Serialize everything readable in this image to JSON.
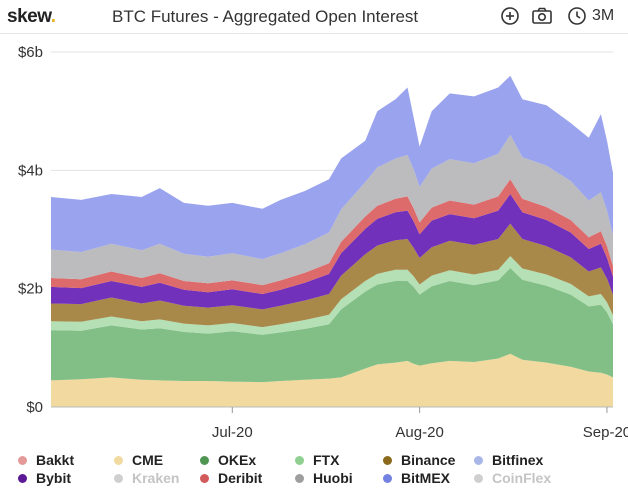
{
  "header": {
    "logo_text": "skew",
    "logo_dot": ".",
    "title": "BTC Futures - Aggregated Open Interest",
    "add_icon": "plus-circle-icon",
    "camera_icon": "camera-icon",
    "clock_icon": "clock-icon",
    "range_label": "3M"
  },
  "chart_data": {
    "type": "area",
    "stacked": true,
    "title": "BTC Futures - Aggregated Open Interest",
    "xlabel": "",
    "ylabel": "",
    "ylim": [
      0,
      6
    ],
    "y_unit": "$bn",
    "y_ticks": [
      "$0",
      "$2b",
      "$4b",
      "$6b"
    ],
    "x_ticks": [
      "Jul-20",
      "Aug-20",
      "Sep-20"
    ],
    "x_tick_days": [
      30,
      61,
      92
    ],
    "x_range_days": [
      0,
      93
    ],
    "grid": "horizontal",
    "legend_position": "bottom",
    "total_open_interest_bn": [
      {
        "day": 0,
        "value": 3.55
      },
      {
        "day": 5,
        "value": 3.5
      },
      {
        "day": 10,
        "value": 3.6
      },
      {
        "day": 15,
        "value": 3.55
      },
      {
        "day": 18,
        "value": 3.7
      },
      {
        "day": 22,
        "value": 3.45
      },
      {
        "day": 26,
        "value": 3.4
      },
      {
        "day": 30,
        "value": 3.45
      },
      {
        "day": 35,
        "value": 3.35
      },
      {
        "day": 38,
        "value": 3.5
      },
      {
        "day": 42,
        "value": 3.65
      },
      {
        "day": 46,
        "value": 3.85
      },
      {
        "day": 48,
        "value": 4.2
      },
      {
        "day": 52,
        "value": 4.5
      },
      {
        "day": 54,
        "value": 5.0
      },
      {
        "day": 57,
        "value": 5.2
      },
      {
        "day": 59,
        "value": 5.4
      },
      {
        "day": 60,
        "value": 4.9
      },
      {
        "day": 61,
        "value": 4.4
      },
      {
        "day": 63,
        "value": 5.0
      },
      {
        "day": 66,
        "value": 5.3
      },
      {
        "day": 70,
        "value": 5.25
      },
      {
        "day": 74,
        "value": 5.4
      },
      {
        "day": 76,
        "value": 5.6
      },
      {
        "day": 78,
        "value": 5.2
      },
      {
        "day": 82,
        "value": 5.1
      },
      {
        "day": 86,
        "value": 4.8
      },
      {
        "day": 89,
        "value": 4.55
      },
      {
        "day": 91,
        "value": 4.95
      },
      {
        "day": 92,
        "value": 4.5
      },
      {
        "day": 93,
        "value": 3.95
      }
    ],
    "series": [
      {
        "name": "CME",
        "color": "#f1d9a0",
        "values": [
          0.45,
          0.47,
          0.5,
          0.46,
          0.45,
          0.44,
          0.44,
          0.43,
          0.42,
          0.44,
          0.46,
          0.48,
          0.5,
          0.65,
          0.72,
          0.75,
          0.78,
          0.73,
          0.7,
          0.74,
          0.78,
          0.76,
          0.82,
          0.9,
          0.8,
          0.75,
          0.68,
          0.6,
          0.58,
          0.55,
          0.5
        ]
      },
      {
        "name": "OKEx",
        "color": "#82bf86",
        "values": [
          0.85,
          0.82,
          0.88,
          0.85,
          0.88,
          0.83,
          0.8,
          0.85,
          0.8,
          0.82,
          0.86,
          0.92,
          1.15,
          1.3,
          1.35,
          1.38,
          1.35,
          1.3,
          1.2,
          1.3,
          1.35,
          1.3,
          1.32,
          1.45,
          1.35,
          1.3,
          1.22,
          1.1,
          1.15,
          1.05,
          0.9
        ]
      },
      {
        "name": "FTX",
        "color": "#b5dfb5",
        "values": [
          0.15,
          0.15,
          0.15,
          0.14,
          0.15,
          0.14,
          0.14,
          0.14,
          0.13,
          0.14,
          0.15,
          0.16,
          0.17,
          0.18,
          0.18,
          0.19,
          0.19,
          0.18,
          0.17,
          0.18,
          0.18,
          0.18,
          0.18,
          0.2,
          0.19,
          0.19,
          0.18,
          0.17,
          0.18,
          0.17,
          0.15
        ]
      },
      {
        "name": "Binance",
        "color": "#a8894a",
        "values": [
          0.3,
          0.3,
          0.32,
          0.3,
          0.32,
          0.3,
          0.3,
          0.3,
          0.3,
          0.31,
          0.33,
          0.35,
          0.4,
          0.45,
          0.48,
          0.5,
          0.52,
          0.48,
          0.45,
          0.48,
          0.5,
          0.5,
          0.52,
          0.55,
          0.5,
          0.48,
          0.45,
          0.42,
          0.45,
          0.4,
          0.35
        ]
      },
      {
        "name": "Bybit",
        "color": "#7131ba",
        "values": [
          0.28,
          0.27,
          0.28,
          0.28,
          0.3,
          0.27,
          0.26,
          0.27,
          0.26,
          0.27,
          0.3,
          0.34,
          0.38,
          0.43,
          0.45,
          0.47,
          0.48,
          0.45,
          0.4,
          0.45,
          0.45,
          0.45,
          0.48,
          0.5,
          0.45,
          0.44,
          0.42,
          0.38,
          0.4,
          0.35,
          0.3
        ]
      },
      {
        "name": "Deribit",
        "color": "#de6b6b",
        "values": [
          0.15,
          0.15,
          0.16,
          0.15,
          0.16,
          0.15,
          0.15,
          0.15,
          0.15,
          0.16,
          0.17,
          0.18,
          0.19,
          0.21,
          0.22,
          0.23,
          0.24,
          0.22,
          0.2,
          0.22,
          0.23,
          0.23,
          0.24,
          0.25,
          0.23,
          0.22,
          0.21,
          0.2,
          0.21,
          0.2,
          0.18
        ]
      },
      {
        "name": "Huobi",
        "color": "#bcbcbe",
        "values": [
          0.48,
          0.46,
          0.47,
          0.47,
          0.5,
          0.46,
          0.45,
          0.46,
          0.44,
          0.46,
          0.48,
          0.52,
          0.55,
          0.58,
          0.65,
          0.68,
          0.7,
          0.66,
          0.6,
          0.66,
          0.7,
          0.7,
          0.72,
          0.75,
          0.7,
          0.7,
          0.66,
          0.62,
          0.66,
          0.6,
          0.52
        ]
      },
      {
        "name": "BitMEX",
        "color": "#9aa3ee",
        "values": [
          0.89,
          0.88,
          0.84,
          0.9,
          0.94,
          0.86,
          0.86,
          0.85,
          0.85,
          0.9,
          0.9,
          0.9,
          0.86,
          0.7,
          0.95,
          1.0,
          1.14,
          0.88,
          0.68,
          0.97,
          1.11,
          1.13,
          1.12,
          1.0,
          0.98,
          1.02,
          0.98,
          1.06,
          1.32,
          1.18,
          1.05
        ]
      }
    ],
    "legend": [
      {
        "name": "Bakkt",
        "color": "#e59a9a",
        "active": true
      },
      {
        "name": "CME",
        "color": "#f1d9a0",
        "active": true
      },
      {
        "name": "OKEx",
        "color": "#4f9653",
        "active": true
      },
      {
        "name": "FTX",
        "color": "#8fcf8f",
        "active": true
      },
      {
        "name": "Binance",
        "color": "#8b6a1e",
        "active": true
      },
      {
        "name": "Bitfinex",
        "color": "#a9b7e8",
        "active": true
      },
      {
        "name": "Bybit",
        "color": "#5b1996",
        "active": true
      },
      {
        "name": "Kraken",
        "color": "#cfcfcf",
        "active": false
      },
      {
        "name": "Deribit",
        "color": "#d35a5a",
        "active": true
      },
      {
        "name": "Huobi",
        "color": "#9e9e9e",
        "active": true
      },
      {
        "name": "BitMEX",
        "color": "#7381e0",
        "active": true
      },
      {
        "name": "CoinFlex",
        "color": "#cfcfcf",
        "active": false
      }
    ]
  }
}
